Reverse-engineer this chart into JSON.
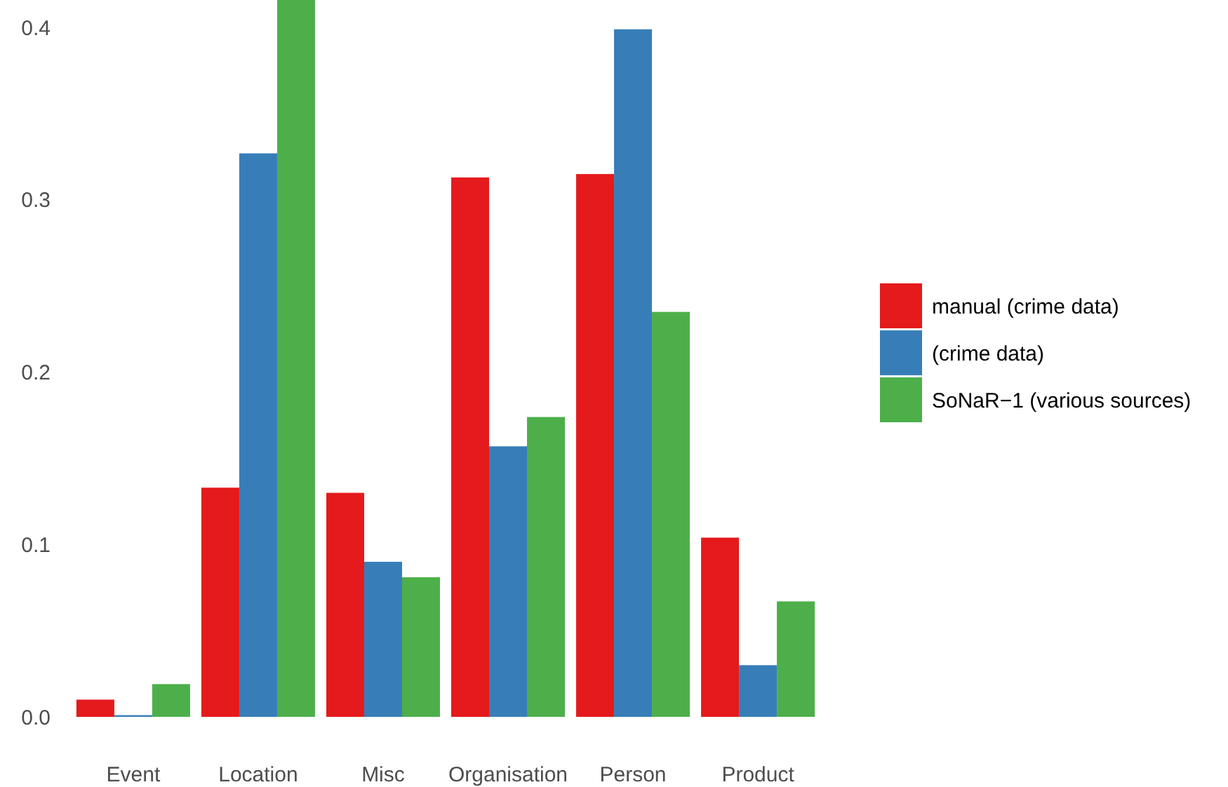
{
  "chart_data": {
    "type": "bar",
    "categories": [
      "Event",
      "Location",
      "Misc",
      "Organisation",
      "Person",
      "Product"
    ],
    "series": [
      {
        "name": "manual (crime data)",
        "color": "#e41a1c",
        "values": [
          0.01,
          0.133,
          0.13,
          0.313,
          0.315,
          0.104
        ]
      },
      {
        "name": "(crime data)",
        "color": "#377eb8",
        "values": [
          0.001,
          0.327,
          0.09,
          0.157,
          0.399,
          0.03
        ]
      },
      {
        "name": "SoNaR−1 (various sources)",
        "color": "#4daf4a",
        "values": [
          0.019,
          0.416,
          0.081,
          0.174,
          0.235,
          0.067
        ]
      }
    ],
    "ylim": [
      0,
      0.416
    ],
    "yticks": [
      {
        "value": 0,
        "label": "0.0"
      },
      0.1,
      0.2,
      0.3,
      0.4
    ],
    "grid": false,
    "legend": "right"
  }
}
